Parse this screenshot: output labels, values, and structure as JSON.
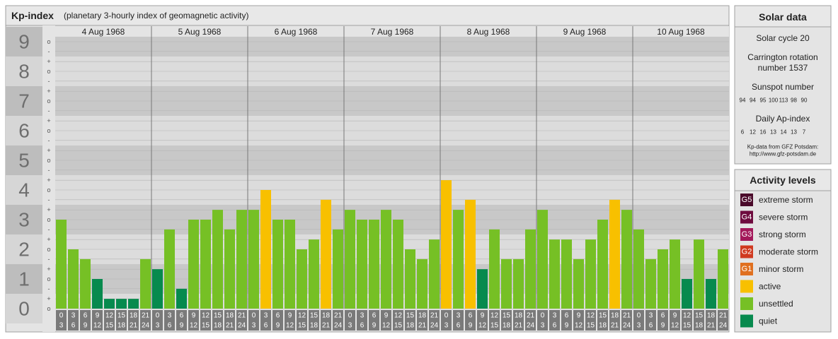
{
  "chart_data": {
    "type": "bar",
    "title": "Kp-index",
    "subtitle": "(planetary 3-hourly index of geomagnetic activity)",
    "days": [
      "4 Aug 1968",
      "5 Aug 1968",
      "6 Aug 1968",
      "7 Aug 1968",
      "8 Aug 1968",
      "9 Aug 1968",
      "10 Aug 1968"
    ],
    "hours": [
      "0",
      "3",
      "6",
      "9",
      "12",
      "15",
      "18",
      "21",
      "24"
    ],
    "values": [
      3,
      2,
      1.67,
      1,
      0.33,
      0.33,
      0.33,
      1.67,
      1.33,
      2.67,
      0.67,
      3,
      3,
      3.33,
      2.67,
      3.33,
      3.33,
      4,
      3,
      3,
      2,
      2.33,
      3.67,
      2.67,
      3.33,
      3,
      3,
      3.33,
      3,
      2,
      1.67,
      2.33,
      4.33,
      3.33,
      3.67,
      1.33,
      2.67,
      1.67,
      1.67,
      2.67,
      3.33,
      2.33,
      2.33,
      1.67,
      2.33,
      3,
      3.67,
      3.33,
      2.67,
      1.67,
      2,
      2.33,
      1,
      2.33,
      1,
      2
    ],
    "colors": [
      "#76c025",
      "#76c025",
      "#76c025",
      "#078a4e",
      "#078a4e",
      "#078a4e",
      "#078a4e",
      "#76c025",
      "#078a4e",
      "#76c025",
      "#078a4e",
      "#76c025",
      "#76c025",
      "#76c025",
      "#76c025",
      "#76c025",
      "#76c025",
      "#f8c000",
      "#76c025",
      "#76c025",
      "#76c025",
      "#76c025",
      "#f8c000",
      "#76c025",
      "#76c025",
      "#76c025",
      "#76c025",
      "#76c025",
      "#76c025",
      "#76c025",
      "#76c025",
      "#76c025",
      "#f8c000",
      "#76c025",
      "#f8c000",
      "#078a4e",
      "#76c025",
      "#76c025",
      "#76c025",
      "#76c025",
      "#76c025",
      "#76c025",
      "#76c025",
      "#76c025",
      "#76c025",
      "#76c025",
      "#f8c000",
      "#76c025",
      "#76c025",
      "#76c025",
      "#76c025",
      "#76c025",
      "#078a4e",
      "#76c025",
      "#078a4e",
      "#76c025"
    ],
    "ylim": [
      0,
      9
    ],
    "yticks": [
      0,
      1,
      2,
      3,
      4,
      5,
      6,
      7,
      8,
      9
    ],
    "minor_ticks": [
      {
        "value": 0,
        "label": "o"
      },
      {
        "value": 0.33,
        "label": "+"
      },
      {
        "value": 0.67,
        "label": "-"
      },
      {
        "value": 1,
        "label": "o"
      },
      {
        "value": 1.33,
        "label": "+"
      },
      {
        "value": 1.67,
        "label": "-"
      },
      {
        "value": 2,
        "label": "o"
      },
      {
        "value": 2.33,
        "label": "+"
      },
      {
        "value": 2.67,
        "label": "-"
      },
      {
        "value": 3,
        "label": "o"
      },
      {
        "value": 3.33,
        "label": "+"
      },
      {
        "value": 3.67,
        "label": "-"
      },
      {
        "value": 4,
        "label": "o"
      },
      {
        "value": 4.33,
        "label": "+"
      },
      {
        "value": 4.67,
        "label": "-"
      },
      {
        "value": 5,
        "label": "o"
      },
      {
        "value": 5.33,
        "label": "+"
      },
      {
        "value": 5.67,
        "label": "-"
      },
      {
        "value": 6,
        "label": "o"
      },
      {
        "value": 6.33,
        "label": "+"
      },
      {
        "value": 6.67,
        "label": "-"
      },
      {
        "value": 7,
        "label": "o"
      },
      {
        "value": 7.33,
        "label": "+"
      },
      {
        "value": 7.67,
        "label": "-"
      },
      {
        "value": 8,
        "label": "o"
      },
      {
        "value": 8.33,
        "label": "+"
      },
      {
        "value": 8.67,
        "label": "-"
      },
      {
        "value": 9,
        "label": "o"
      }
    ],
    "grid": true
  },
  "solar_data": {
    "title": "Solar data",
    "cycle": "Solar cycle 20",
    "carrington": [
      "Carrington rotation",
      "number 1537"
    ],
    "sunspot_title": "Sunspot number",
    "sunspot": [
      94,
      94,
      95,
      100,
      113,
      98,
      90
    ],
    "ap_title": "Daily Ap-index",
    "ap": [
      6,
      12,
      16,
      13,
      14,
      13,
      7
    ],
    "source": [
      "Kp-data from GFZ Potsdam:",
      "http://www.gfz-potsdam.de"
    ]
  },
  "activity_levels": {
    "title": "Activity levels",
    "levels": [
      {
        "code": "G5",
        "name": "extreme storm",
        "color": "#4a0a2a"
      },
      {
        "code": "G4",
        "name": "severe storm",
        "color": "#6e0b3e"
      },
      {
        "code": "G3",
        "name": "strong storm",
        "color": "#a3185a"
      },
      {
        "code": "G2",
        "name": "moderate storm",
        "color": "#d03a20"
      },
      {
        "code": "G1",
        "name": "minor storm",
        "color": "#e07020"
      },
      {
        "name": "active",
        "color": "#f8c000"
      },
      {
        "name": "unsettled",
        "color": "#76c025"
      },
      {
        "name": "quiet",
        "color": "#078a4e"
      }
    ]
  }
}
